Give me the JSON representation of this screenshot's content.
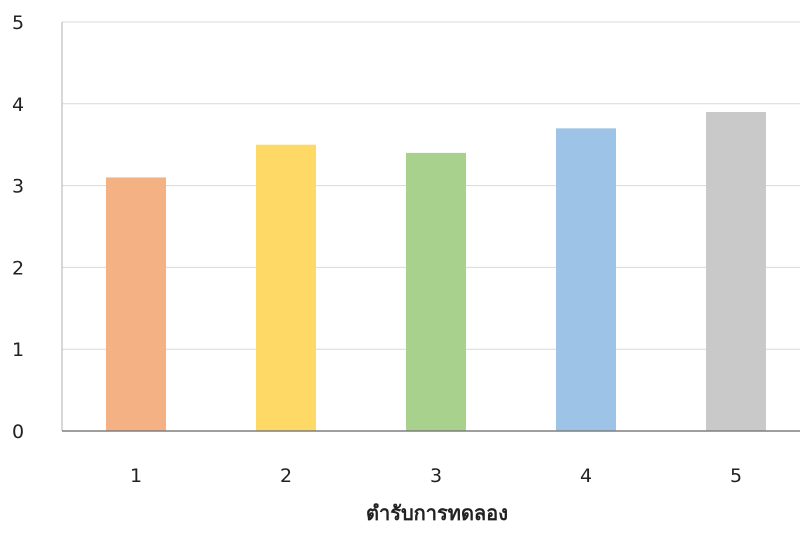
{
  "chart_data": {
    "type": "bar",
    "title": "",
    "xlabel": "ตำรับการทดลอง",
    "ylabel": "",
    "categories": [
      "1",
      "2",
      "3",
      "4",
      "5"
    ],
    "values": [
      3.1,
      3.5,
      3.4,
      3.7,
      3.9
    ],
    "ylim": [
      0,
      5
    ],
    "yticks": [
      "0",
      "1",
      "2",
      "3",
      "4",
      "5"
    ],
    "grid": true,
    "legend": "none",
    "colors": [
      "#f4b183",
      "#ffd966",
      "#a9d18e",
      "#9dc3e6",
      "#c9c9c9"
    ]
  }
}
